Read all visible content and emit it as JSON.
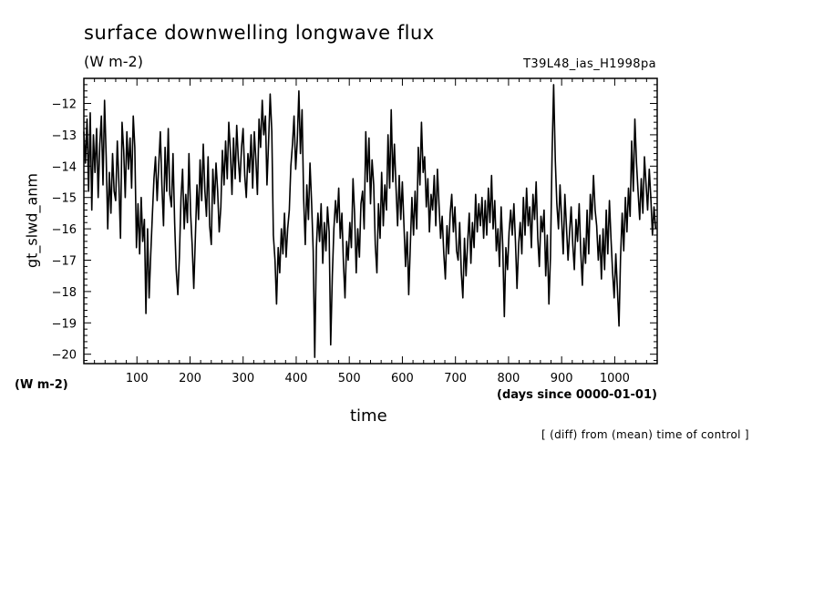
{
  "title": "surface downwelling longwave flux",
  "subtitle": "(W m-2)",
  "run_label": "T39L48_ias_H1998pa",
  "units_left": "(W m-2)",
  "days_since": "(days since 0000-01-01)",
  "note": "[ (diff) from (mean) time of control ]",
  "colors": {
    "line": "#000000",
    "background": "#ffffff"
  },
  "chart_data": {
    "type": "line",
    "title": "surface downwelling longwave flux",
    "subtitle": "(W m-2)",
    "xlabel": "time",
    "ylabel": "gt_slwd_anm",
    "xlim": [
      0,
      1080
    ],
    "ylim": [
      -20.3,
      -11.2
    ],
    "x_ticks": [
      100,
      200,
      300,
      400,
      500,
      600,
      700,
      800,
      900,
      1000
    ],
    "y_ticks": [
      -20,
      -19,
      -18,
      -17,
      -16,
      -15,
      -14,
      -13,
      -12
    ],
    "grid": false,
    "series": [
      {
        "x_start": 0,
        "x_step": 3,
        "values": [
          -12.9,
          -13.9,
          -12.5,
          -14.8,
          -12.3,
          -15.4,
          -13.0,
          -14.2,
          -12.8,
          -15.0,
          -13.3,
          -12.4,
          -14.6,
          -11.9,
          -13.7,
          -16.0,
          -14.2,
          -15.5,
          -13.6,
          -14.8,
          -15.1,
          -13.2,
          -14.5,
          -16.3,
          -12.6,
          -13.5,
          -15.0,
          -12.9,
          -14.1,
          -13.1,
          -14.7,
          -12.4,
          -13.4,
          -16.6,
          -15.2,
          -16.8,
          -15.0,
          -16.4,
          -15.7,
          -18.7,
          -16.0,
          -18.2,
          -16.8,
          -15.6,
          -14.4,
          -13.7,
          -15.1,
          -14.0,
          -12.9,
          -14.6,
          -15.9,
          -13.4,
          -14.8,
          -12.8,
          -14.9,
          -15.3,
          -13.6,
          -15.8,
          -17.3,
          -18.1,
          -16.9,
          -15.0,
          -14.1,
          -16.0,
          -14.9,
          -15.8,
          -13.6,
          -15.5,
          -16.5,
          -17.9,
          -16.3,
          -14.6,
          -15.7,
          -13.8,
          -15.1,
          -13.3,
          -14.8,
          -15.6,
          -13.7,
          -15.9,
          -16.5,
          -14.1,
          -15.2,
          -13.9,
          -14.8,
          -16.1,
          -15.3,
          -13.5,
          -14.6,
          -13.2,
          -14.4,
          -12.6,
          -13.5,
          -14.9,
          -13.1,
          -14.4,
          -12.7,
          -13.8,
          -14.5,
          -13.4,
          -12.8,
          -14.3,
          -15.0,
          -13.6,
          -14.2,
          -13.0,
          -14.7,
          -12.9,
          -13.8,
          -14.9,
          -12.5,
          -13.4,
          -11.9,
          -13.0,
          -12.4,
          -14.6,
          -13.2,
          -11.7,
          -12.9,
          -16.2,
          -17.0,
          -18.4,
          -16.6,
          -17.4,
          -16.0,
          -16.8,
          -15.5,
          -16.9,
          -16.0,
          -15.4,
          -14.0,
          -13.3,
          -12.4,
          -14.1,
          -13.2,
          -11.6,
          -13.6,
          -12.2,
          -15.0,
          -16.5,
          -14.6,
          -15.7,
          -13.9,
          -15.2,
          -16.7,
          -20.1,
          -16.6,
          -15.5,
          -16.4,
          -15.2,
          -17.1,
          -15.8,
          -16.7,
          -15.3,
          -16.1,
          -19.7,
          -17.5,
          -16.0,
          -15.1,
          -15.8,
          -14.7,
          -16.3,
          -15.5,
          -17.1,
          -18.2,
          -16.4,
          -17.0,
          -15.8,
          -16.6,
          -14.4,
          -15.5,
          -17.4,
          -16.0,
          -16.9,
          -15.2,
          -14.8,
          -16.0,
          -12.9,
          -14.5,
          -13.1,
          -15.2,
          -13.8,
          -14.6,
          -16.5,
          -17.4,
          -15.2,
          -16.3,
          -14.2,
          -15.9,
          -14.6,
          -15.4,
          -13.0,
          -14.7,
          -12.2,
          -14.5,
          -13.3,
          -14.7,
          -15.9,
          -14.3,
          -15.7,
          -14.5,
          -15.9,
          -17.2,
          -16.1,
          -18.1,
          -16.5,
          -15.0,
          -16.2,
          -14.8,
          -16.0,
          -13.4,
          -14.6,
          -12.6,
          -14.2,
          -13.7,
          -15.3,
          -14.4,
          -16.1,
          -14.9,
          -15.4,
          -14.3,
          -15.9,
          -14.1,
          -15.2,
          -16.3,
          -15.6,
          -16.8,
          -17.6,
          -15.9,
          -16.8,
          -15.5,
          -14.9,
          -16.1,
          -15.3,
          -16.7,
          -17.0,
          -15.8,
          -17.4,
          -18.2,
          -16.3,
          -17.5,
          -16.4,
          -15.5,
          -17.1,
          -15.8,
          -16.6,
          -14.9,
          -16.1,
          -15.2,
          -15.9,
          -15.0,
          -16.3,
          -15.1,
          -16.2,
          -14.7,
          -15.8,
          -14.3,
          -16.0,
          -15.1,
          -16.7,
          -16.0,
          -17.2,
          -15.3,
          -16.5,
          -18.8,
          -16.6,
          -17.3,
          -16.1,
          -15.4,
          -16.2,
          -15.2,
          -16.4,
          -17.9,
          -16.5,
          -15.8,
          -16.8,
          -15.0,
          -16.2,
          -14.7,
          -15.9,
          -15.3,
          -16.6,
          -14.9,
          -15.7,
          -14.5,
          -16.3,
          -17.2,
          -15.6,
          -16.1,
          -15.4,
          -17.5,
          -16.2,
          -18.4,
          -16.9,
          -13.6,
          -11.4,
          -13.8,
          -15.2,
          -16.0,
          -14.6,
          -15.7,
          -16.8,
          -14.9,
          -15.9,
          -17.0,
          -16.1,
          -15.3,
          -16.5,
          -17.3,
          -15.7,
          -16.4,
          -15.2,
          -16.7,
          -17.8,
          -16.3,
          -17.1,
          -15.4,
          -16.8,
          -14.9,
          -15.7,
          -14.3,
          -15.4,
          -15.9,
          -17.0,
          -16.2,
          -17.6,
          -16.0,
          -17.3,
          -15.4,
          -16.8,
          -15.1,
          -16.3,
          -17.4,
          -18.2,
          -16.8,
          -17.9,
          -19.1,
          -16.9,
          -15.5,
          -16.7,
          -15.0,
          -16.1,
          -14.7,
          -15.6,
          -13.2,
          -14.8,
          -12.5,
          -13.9,
          -14.8,
          -15.7,
          -14.4,
          -15.5,
          -13.7,
          -14.6,
          -15.4,
          -14.1,
          -15.0,
          -16.2,
          -15.3,
          -16.0
        ]
      }
    ]
  }
}
